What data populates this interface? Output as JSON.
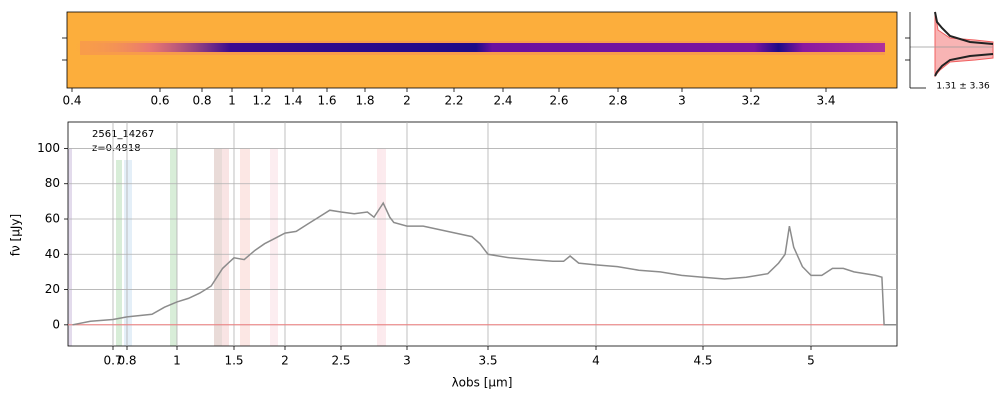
{
  "chart_data": [
    {
      "type": "image",
      "xticks": [
        0.4,
        0.6,
        0.8,
        1.0,
        1.2,
        1.4,
        1.6,
        1.8,
        2.0,
        2.2,
        2.4,
        2.6,
        2.8,
        3.0,
        3.2,
        3.4
      ]
    },
    {
      "type": "line",
      "annotations": [
        "2561_14267",
        "z=0.4918"
      ],
      "xlabel": "λobs [μm]",
      "ylabel": "fν [μJy]",
      "xlim": [
        0.5,
        5.4
      ],
      "ylim": [
        -12,
        115
      ],
      "xticks": [
        0.7,
        0.8,
        1.0,
        1.5,
        2.0,
        2.5,
        3.0,
        3.5,
        4.0,
        4.5,
        5.0
      ],
      "yticks": [
        0,
        20,
        40,
        60,
        80,
        100
      ],
      "grid": true,
      "series": [
        {
          "name": "spectrum",
          "color": "#8c8c8c",
          "x": [
            0.52,
            0.6,
            0.7,
            0.8,
            0.9,
            0.95,
            1.0,
            1.1,
            1.2,
            1.3,
            1.35,
            1.4,
            1.45,
            1.5,
            1.6,
            1.7,
            1.8,
            1.9,
            2.0,
            2.1,
            2.2,
            2.3,
            2.4,
            2.5,
            2.6,
            2.7,
            2.75,
            2.82,
            2.87,
            2.9,
            3.0,
            3.1,
            3.2,
            3.3,
            3.4,
            3.45,
            3.5,
            3.6,
            3.7,
            3.8,
            3.85,
            3.88,
            3.92,
            4.0,
            4.1,
            4.2,
            4.3,
            4.4,
            4.5,
            4.6,
            4.7,
            4.8,
            4.85,
            4.88,
            4.9,
            4.92,
            4.96,
            5.0,
            5.05,
            5.1,
            5.15,
            5.2,
            5.3,
            5.33,
            5.34,
            5.4
          ],
          "values": [
            0,
            2,
            3,
            4.5,
            6,
            10,
            13,
            15,
            18,
            22,
            27,
            32,
            35,
            38,
            37,
            42,
            46,
            49,
            52,
            53,
            57,
            61,
            65,
            64,
            63,
            64,
            61,
            69,
            61,
            58,
            56,
            56,
            54,
            52,
            50,
            46,
            40,
            38,
            37,
            36,
            36,
            39,
            35,
            34,
            33,
            31,
            30,
            28,
            27,
            26,
            27,
            29,
            35,
            40,
            56,
            44,
            33,
            28,
            28,
            32,
            32,
            30,
            28,
            27,
            0,
            0
          ]
        },
        {
          "name": "zero",
          "color": "#f08080",
          "x": [
            0.5,
            5.4
          ],
          "values": [
            0,
            0
          ]
        }
      ]
    },
    {
      "type": "inset",
      "label": "1.31 ± 3.36"
    }
  ]
}
